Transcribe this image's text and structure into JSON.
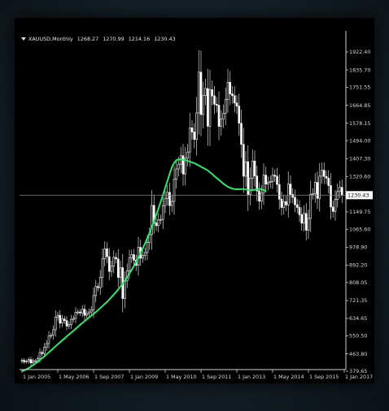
{
  "header": {
    "symbol": "XAUUSD,Monthly",
    "open": "1268.27",
    "high": "1270.99",
    "low": "1214.16",
    "close": "1230.43"
  },
  "current_price_label": "1230.43",
  "chart_data": {
    "type": "candlestick",
    "title": "XAUUSD,Monthly",
    "y_tick_labels": [
      "1922.40",
      "1835.70",
      "1751.55",
      "1664.85",
      "1578.15",
      "1494.00",
      "1407.30",
      "1320.60",
      "1149.75",
      "1065.60",
      "978.90",
      "892.20",
      "808.05",
      "721.35",
      "634.65",
      "550.50",
      "463.80",
      "379.65"
    ],
    "x_tick_labels": [
      "1 Jan 2005",
      "1 May 2006",
      "1 Sep 2007",
      "1 Jan 2009",
      "1 May 2010",
      "1 Sep 2011",
      "1 Jan 2013",
      "1 May 2014",
      "1 Sep 2015",
      "1 Jan 2017"
    ],
    "ylim": [
      379.65,
      1922.4
    ],
    "current_price": 1230.43,
    "series": [
      {
        "name": "",
        "kind": "close",
        "color": "#d8d8d8",
        "values": [
          432,
          425,
          428,
          436,
          420,
          430,
          430,
          440,
          470,
          465,
          495,
          513,
          550,
          553,
          580,
          640,
          650,
          612,
          632,
          624,
          598,
          605,
          630,
          635,
          665,
          666,
          661,
          679,
          650,
          658,
          666,
          677,
          745,
          789,
          783,
          834,
          923,
          971,
          933,
          862,
          887,
          930,
          922,
          833,
          880,
          731,
          816,
          865,
          927,
          943,
          916,
          891,
          978,
          926,
          939,
          953,
          1001,
          1040,
          1181,
          1096,
          1083,
          1112,
          1113,
          1180,
          1215,
          1244,
          1180,
          1200,
          1307,
          1357,
          1380,
          1421,
          1333,
          1409,
          1439,
          1556,
          1536,
          1500,
          1628,
          1825,
          1620,
          1712,
          1746,
          1564,
          1740,
          1710,
          1670,
          1665,
          1563,
          1598,
          1626,
          1693,
          1776,
          1720,
          1711,
          1676,
          1661,
          1578,
          1476,
          1322,
          1392,
          1234,
          1312,
          1395,
          1323,
          1251,
          1201,
          1240,
          1327,
          1284,
          1292,
          1297,
          1327,
          1322,
          1282,
          1211,
          1171,
          1199,
          1183,
          1284,
          1234,
          1220,
          1184,
          1171,
          1136,
          1095,
          1142,
          1061,
          1118,
          1235,
          1238,
          1292,
          1215,
          1322,
          1351,
          1321,
          1313,
          1277,
          1173,
          1152,
          1210,
          1248,
          1268,
          1230
        ],
        "start": "1 Jan 2005",
        "interval": "1 month"
      },
      {
        "name": "",
        "kind": "moving average",
        "color": "#2ee86c",
        "values": [
          380,
          384,
          389,
          395,
          402,
          409,
          417,
          425,
          434,
          443,
          452,
          461,
          471,
          480,
          490,
          500,
          510,
          519,
          529,
          538,
          548,
          557,
          566,
          575,
          585,
          594,
          604,
          613,
          622,
          631,
          640,
          648,
          657,
          666,
          675,
          685,
          695,
          705,
          715,
          726,
          738,
          750,
          762,
          775,
          789,
          803,
          818,
          834,
          851,
          869,
          888,
          908,
          929,
          951,
          974,
          998,
          1023,
          1049,
          1077,
          1106,
          1136,
          1167,
          1199,
          1232,
          1266,
          1300,
          1334,
          1366,
          1386,
          1400,
          1403,
          1404,
          1402,
          1400,
          1396,
          1393,
          1389,
          1385,
          1380,
          1374,
          1368,
          1362,
          1356,
          1350,
          1341,
          1332,
          1322,
          1313,
          1304,
          1295,
          1286,
          1278,
          1271,
          1266,
          1262,
          1260,
          1259,
          1259,
          1260,
          1260,
          1258,
          1256,
          1254,
          1255,
          1257,
          1259,
          1260,
          1259,
          1255,
          1250
        ]
      }
    ],
    "grid": false
  }
}
